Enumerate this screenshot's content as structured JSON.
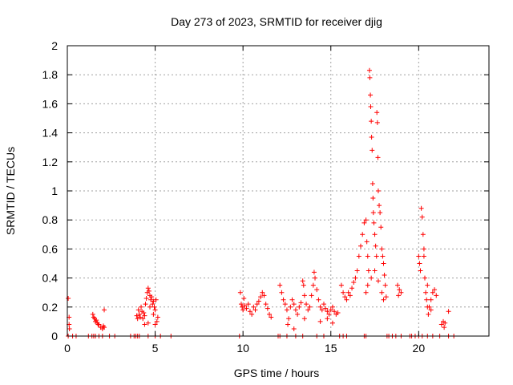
{
  "chart_data": {
    "type": "scatter",
    "title": "Day 273 of 2023, SRMTID for receiver djig",
    "xlabel": "GPS time / hours",
    "ylabel": "SRMTID / TECUs",
    "xlim": [
      0,
      24
    ],
    "ylim": [
      0,
      2
    ],
    "x_ticks": [
      0,
      5,
      10,
      15,
      20
    ],
    "y_ticks": [
      0,
      0.2,
      0.4,
      0.6,
      0.8,
      1,
      1.2,
      1.4,
      1.6,
      1.8,
      2
    ],
    "x_tick_labels": [
      "0",
      "5",
      "10",
      "15",
      "20"
    ],
    "y_tick_labels": [
      "0",
      "0.2",
      "0.4",
      "0.6",
      "0.8",
      "1",
      "1.2",
      "1.4",
      "1.6",
      "1.8",
      "2"
    ],
    "grid": true,
    "marker": "+",
    "series": [
      {
        "name": "SRMTID",
        "color": "#ff0000",
        "points": [
          [
            0.05,
            0.26
          ],
          [
            0.1,
            0.13
          ],
          [
            0.1,
            0.08
          ],
          [
            0.12,
            0.05
          ],
          [
            0.05,
            0.0
          ],
          [
            0.3,
            0.0
          ],
          [
            0.5,
            0.0
          ],
          [
            1.2,
            0.0
          ],
          [
            1.4,
            0.0
          ],
          [
            1.5,
            0.0
          ],
          [
            1.6,
            0.0
          ],
          [
            1.8,
            0.0
          ],
          [
            2.0,
            0.0
          ],
          [
            2.4,
            0.0
          ],
          [
            2.7,
            0.0
          ],
          [
            1.45,
            0.15
          ],
          [
            1.5,
            0.13
          ],
          [
            1.55,
            0.12
          ],
          [
            1.6,
            0.1
          ],
          [
            1.65,
            0.11
          ],
          [
            1.7,
            0.09
          ],
          [
            1.75,
            0.08
          ],
          [
            1.8,
            0.08
          ],
          [
            1.9,
            0.06
          ],
          [
            2.0,
            0.05
          ],
          [
            2.05,
            0.07
          ],
          [
            2.1,
            0.06
          ],
          [
            2.1,
            0.18
          ],
          [
            3.6,
            0.0
          ],
          [
            3.8,
            0.0
          ],
          [
            3.9,
            0.0
          ],
          [
            4.0,
            0.0
          ],
          [
            4.1,
            0.0
          ],
          [
            4.6,
            0.0
          ],
          [
            5.0,
            0.0
          ],
          [
            5.3,
            0.0
          ],
          [
            5.9,
            0.0
          ],
          [
            3.95,
            0.14
          ],
          [
            4.0,
            0.12
          ],
          [
            4.05,
            0.18
          ],
          [
            4.1,
            0.15
          ],
          [
            4.15,
            0.13
          ],
          [
            4.2,
            0.2
          ],
          [
            4.25,
            0.17
          ],
          [
            4.3,
            0.12
          ],
          [
            4.35,
            0.16
          ],
          [
            4.4,
            0.14
          ],
          [
            4.45,
            0.22
          ],
          [
            4.5,
            0.26
          ],
          [
            4.55,
            0.3
          ],
          [
            4.6,
            0.33
          ],
          [
            4.65,
            0.31
          ],
          [
            4.7,
            0.28
          ],
          [
            4.75,
            0.25
          ],
          [
            4.8,
            0.27
          ],
          [
            4.85,
            0.22
          ],
          [
            4.9,
            0.24
          ],
          [
            4.95,
            0.2
          ],
          [
            5.0,
            0.18
          ],
          [
            5.05,
            0.25
          ],
          [
            5.1,
            0.1
          ],
          [
            5.15,
            0.13
          ],
          [
            4.4,
            0.08
          ],
          [
            4.6,
            0.09
          ],
          [
            4.7,
            0.2
          ],
          [
            4.9,
            0.15
          ],
          [
            5.0,
            0.08
          ],
          [
            9.8,
            0.0
          ],
          [
            12.0,
            0.0
          ],
          [
            12.1,
            0.0
          ],
          [
            12.5,
            0.0
          ],
          [
            13.0,
            0.0
          ],
          [
            13.4,
            0.0
          ],
          [
            14.2,
            0.0
          ],
          [
            14.6,
            0.0
          ],
          [
            15.5,
            0.0
          ],
          [
            15.7,
            0.0
          ],
          [
            15.9,
            0.0
          ],
          [
            9.85,
            0.3
          ],
          [
            9.9,
            0.22
          ],
          [
            9.95,
            0.2
          ],
          [
            10.0,
            0.18
          ],
          [
            10.05,
            0.26
          ],
          [
            10.1,
            0.21
          ],
          [
            10.2,
            0.19
          ],
          [
            10.3,
            0.22
          ],
          [
            10.4,
            0.17
          ],
          [
            10.5,
            0.15
          ],
          [
            10.6,
            0.2
          ],
          [
            10.7,
            0.18
          ],
          [
            10.8,
            0.22
          ],
          [
            10.9,
            0.24
          ],
          [
            11.0,
            0.27
          ],
          [
            11.1,
            0.3
          ],
          [
            11.2,
            0.28
          ],
          [
            11.3,
            0.22
          ],
          [
            11.4,
            0.19
          ],
          [
            11.5,
            0.15
          ],
          [
            11.6,
            0.13
          ],
          [
            12.1,
            0.35
          ],
          [
            12.2,
            0.3
          ],
          [
            12.3,
            0.25
          ],
          [
            12.4,
            0.22
          ],
          [
            12.5,
            0.18
          ],
          [
            12.55,
            0.08
          ],
          [
            12.6,
            0.12
          ],
          [
            12.7,
            0.2
          ],
          [
            12.8,
            0.25
          ],
          [
            12.9,
            0.22
          ],
          [
            13.0,
            0.18
          ],
          [
            13.1,
            0.15
          ],
          [
            13.2,
            0.2
          ],
          [
            13.3,
            0.23
          ],
          [
            13.4,
            0.38
          ],
          [
            13.45,
            0.35
          ],
          [
            13.5,
            0.28
          ],
          [
            13.6,
            0.22
          ],
          [
            13.7,
            0.18
          ],
          [
            13.8,
            0.2
          ],
          [
            13.9,
            0.28
          ],
          [
            14.0,
            0.35
          ],
          [
            14.05,
            0.44
          ],
          [
            14.1,
            0.4
          ],
          [
            14.2,
            0.32
          ],
          [
            14.3,
            0.25
          ],
          [
            14.4,
            0.2
          ],
          [
            14.5,
            0.18
          ],
          [
            14.6,
            0.22
          ],
          [
            14.7,
            0.19
          ],
          [
            14.8,
            0.17
          ],
          [
            14.9,
            0.15
          ],
          [
            15.0,
            0.18
          ],
          [
            15.1,
            0.2
          ],
          [
            15.2,
            0.17
          ],
          [
            15.3,
            0.15
          ],
          [
            15.4,
            0.16
          ],
          [
            12.9,
            0.05
          ],
          [
            13.5,
            0.12
          ],
          [
            14.4,
            0.1
          ],
          [
            14.8,
            0.12
          ],
          [
            15.1,
            0.09
          ],
          [
            15.6,
            0.35
          ],
          [
            15.7,
            0.3
          ],
          [
            15.8,
            0.27
          ],
          [
            15.9,
            0.25
          ],
          [
            16.0,
            0.3
          ],
          [
            16.1,
            0.28
          ],
          [
            16.2,
            0.33
          ],
          [
            16.3,
            0.37
          ],
          [
            16.4,
            0.4
          ],
          [
            16.5,
            0.45
          ],
          [
            16.6,
            0.55
          ],
          [
            16.7,
            0.62
          ],
          [
            16.8,
            0.7
          ],
          [
            16.9,
            0.78
          ],
          [
            17.0,
            0.8
          ],
          [
            17.05,
            0.65
          ],
          [
            17.1,
            0.55
          ],
          [
            17.15,
            0.45
          ],
          [
            17.2,
            1.83
          ],
          [
            17.22,
            1.78
          ],
          [
            17.25,
            1.66
          ],
          [
            17.27,
            1.58
          ],
          [
            17.3,
            1.48
          ],
          [
            17.32,
            1.37
          ],
          [
            17.35,
            1.28
          ],
          [
            17.38,
            1.05
          ],
          [
            17.4,
            0.95
          ],
          [
            17.42,
            0.85
          ],
          [
            17.45,
            0.78
          ],
          [
            17.5,
            0.7
          ],
          [
            17.55,
            0.62
          ],
          [
            17.6,
            0.55
          ],
          [
            17.62,
            1.54
          ],
          [
            17.65,
            1.47
          ],
          [
            17.68,
            1.23
          ],
          [
            17.7,
            1.0
          ],
          [
            17.75,
            0.9
          ],
          [
            17.8,
            0.85
          ],
          [
            17.85,
            0.75
          ],
          [
            17.9,
            0.6
          ],
          [
            17.95,
            0.55
          ],
          [
            18.0,
            0.5
          ],
          [
            18.05,
            0.42
          ],
          [
            18.1,
            0.35
          ],
          [
            18.15,
            0.27
          ],
          [
            17.0,
            0.3
          ],
          [
            17.1,
            0.35
          ],
          [
            17.3,
            0.4
          ],
          [
            17.5,
            0.45
          ],
          [
            17.7,
            0.38
          ],
          [
            17.9,
            0.3
          ],
          [
            18.0,
            0.25
          ],
          [
            16.9,
            0.0
          ],
          [
            17.0,
            0.0
          ],
          [
            18.2,
            0.0
          ],
          [
            18.3,
            0.0
          ],
          [
            18.5,
            0.0
          ],
          [
            18.7,
            0.0
          ],
          [
            19.0,
            0.0
          ],
          [
            19.5,
            0.0
          ],
          [
            19.6,
            0.0
          ],
          [
            19.8,
            0.0
          ],
          [
            20.0,
            0.0
          ],
          [
            20.2,
            0.0
          ],
          [
            20.5,
            0.0
          ],
          [
            20.8,
            0.0
          ],
          [
            21.2,
            0.0
          ],
          [
            21.7,
            0.0
          ],
          [
            22.0,
            0.0
          ],
          [
            18.8,
            0.35
          ],
          [
            18.9,
            0.32
          ],
          [
            19.0,
            0.3
          ],
          [
            18.85,
            0.28
          ],
          [
            20.0,
            0.55
          ],
          [
            20.05,
            0.5
          ],
          [
            20.1,
            0.45
          ],
          [
            20.15,
            0.88
          ],
          [
            20.2,
            0.82
          ],
          [
            20.25,
            0.7
          ],
          [
            20.3,
            0.6
          ],
          [
            20.35,
            0.4
          ],
          [
            20.4,
            0.3
          ],
          [
            20.45,
            0.25
          ],
          [
            20.5,
            0.2
          ],
          [
            20.55,
            0.15
          ],
          [
            20.6,
            0.2
          ],
          [
            20.7,
            0.25
          ],
          [
            20.8,
            0.3
          ],
          [
            20.9,
            0.32
          ],
          [
            21.0,
            0.28
          ],
          [
            20.3,
            0.55
          ],
          [
            20.5,
            0.35
          ],
          [
            20.7,
            0.18
          ],
          [
            21.3,
            0.08
          ],
          [
            21.4,
            0.1
          ],
          [
            21.5,
            0.09
          ],
          [
            21.45,
            0.06
          ],
          [
            21.7,
            0.17
          ]
        ]
      }
    ]
  }
}
